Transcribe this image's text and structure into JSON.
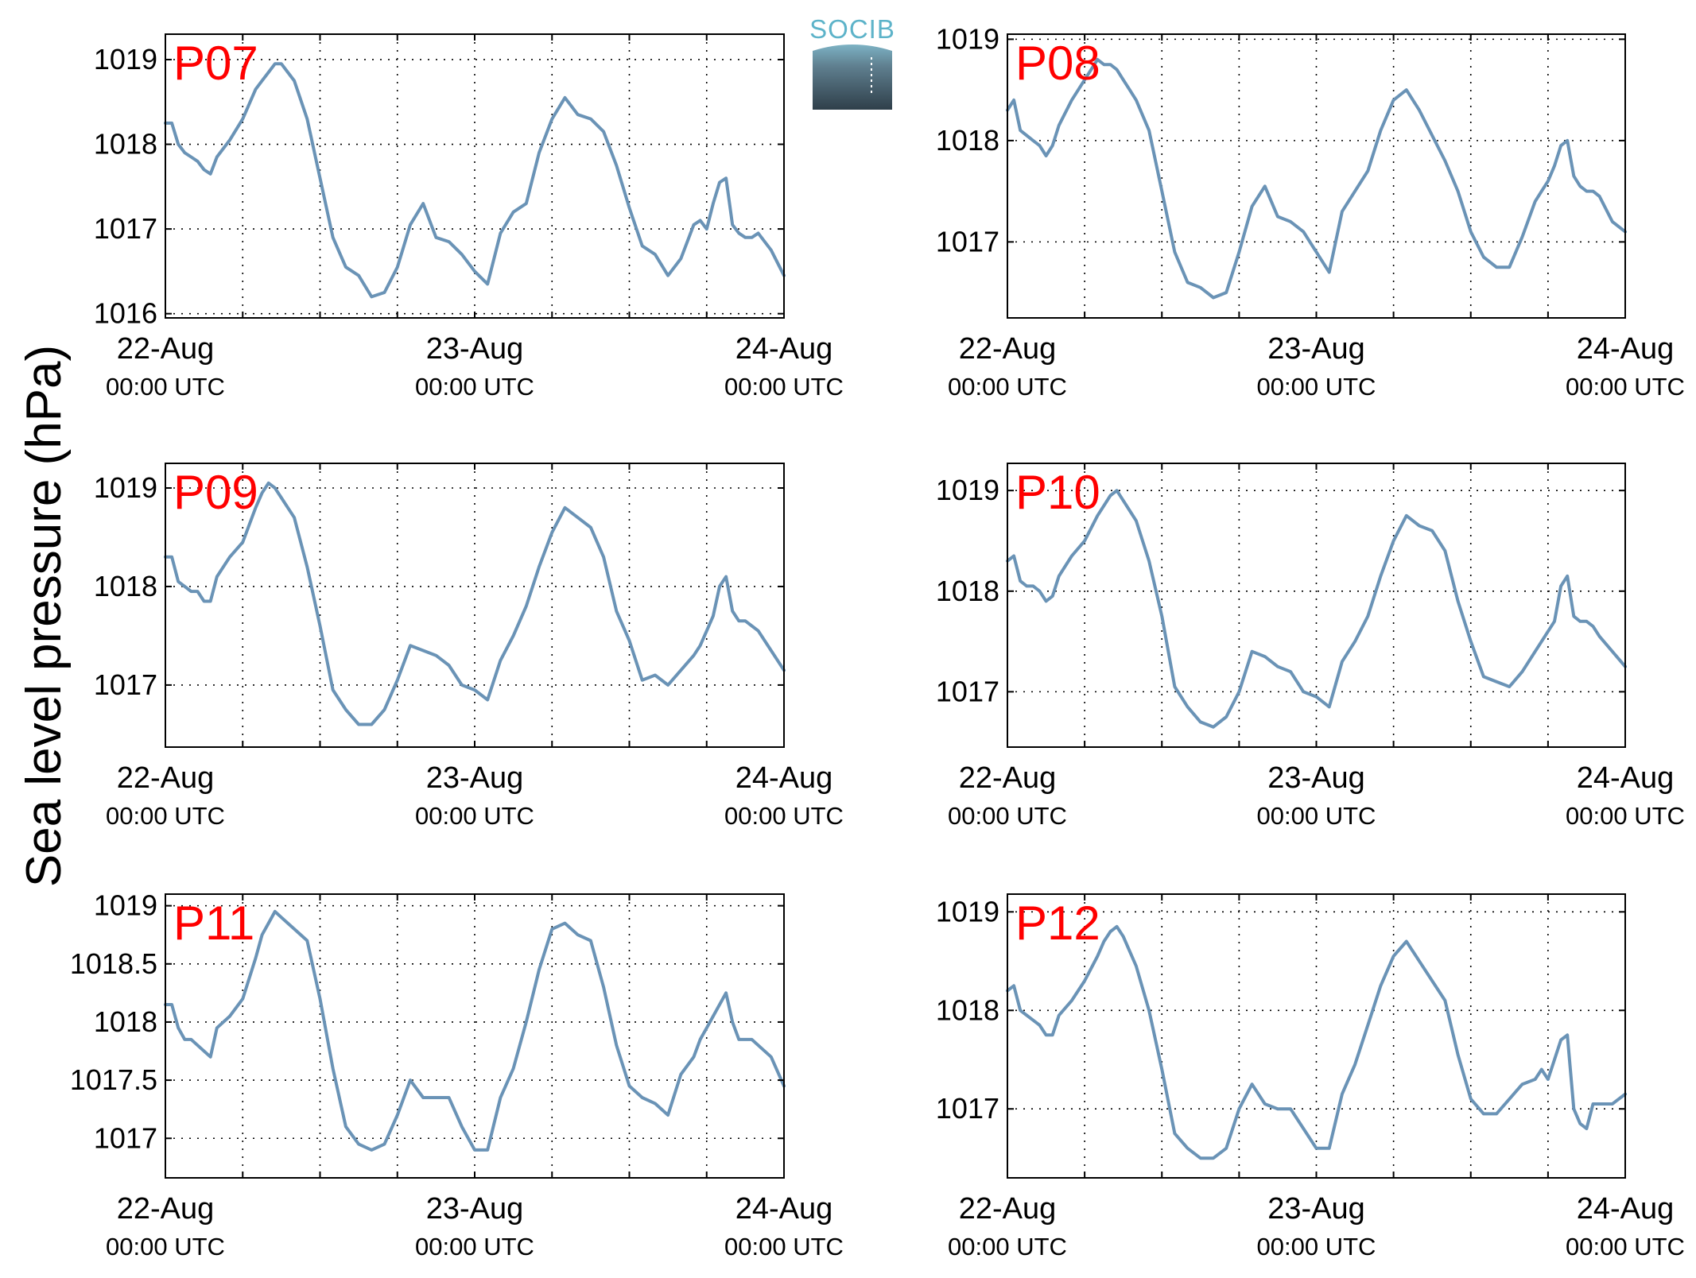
{
  "figure": {
    "ylabel": "Sea level pressure (hPa)",
    "logo_text": "SOCIB"
  },
  "colors": {
    "line": "#6a93b6",
    "title": "#ff0000",
    "axis": "#000000",
    "grid": "#000000"
  },
  "chart_data": [
    {
      "type": "line",
      "title": "P07",
      "x_ticks": [
        {
          "date": "22-Aug",
          "time": "00:00 UTC"
        },
        {
          "date": "23-Aug",
          "time": "00:00 UTC"
        },
        {
          "date": "24-Aug",
          "time": "00:00 UTC"
        }
      ],
      "xlim": [
        0,
        48
      ],
      "ylim": [
        1015.95,
        1019.3
      ],
      "yticks": [
        1016,
        1017,
        1018,
        1019
      ],
      "ytick_labels": [
        "1016",
        "1017",
        "1018",
        "1019"
      ],
      "grid": true,
      "series": [
        {
          "x": [
            0,
            0.5,
            1,
            1.5,
            2,
            2.5,
            3,
            3.5,
            4,
            5,
            6,
            7,
            7.5,
            8,
            8.5,
            9,
            9.5,
            10,
            11,
            12,
            13,
            14,
            15,
            16,
            17,
            18,
            19,
            20,
            21,
            22,
            23,
            24,
            25,
            26,
            27,
            28,
            29,
            30,
            31,
            32,
            33,
            34,
            35,
            36,
            37,
            38,
            39,
            40,
            41,
            41.5,
            42,
            42.5,
            43,
            43.5,
            44,
            44.5,
            45,
            45.5,
            46,
            47,
            48
          ],
          "y": [
            1018.25,
            1018.25,
            1018.0,
            1017.9,
            1017.85,
            1017.8,
            1017.7,
            1017.65,
            1017.85,
            1018.05,
            1018.3,
            1018.65,
            1018.75,
            1018.85,
            1018.95,
            1018.95,
            1018.85,
            1018.75,
            1018.3,
            1017.6,
            1016.9,
            1016.55,
            1016.45,
            1016.2,
            1016.25,
            1016.55,
            1017.05,
            1017.3,
            1016.9,
            1016.85,
            1016.7,
            1016.5,
            1016.35,
            1016.95,
            1017.2,
            1017.3,
            1017.9,
            1018.3,
            1018.55,
            1018.35,
            1018.3,
            1018.15,
            1017.75,
            1017.25,
            1016.8,
            1016.7,
            1016.45,
            1016.65,
            1017.05,
            1017.1,
            1017.0,
            1017.3,
            1017.55,
            1017.6,
            1017.05,
            1016.95,
            1016.9,
            1016.9,
            1016.95,
            1016.75,
            1016.45
          ]
        }
      ]
    },
    {
      "type": "line",
      "title": "P08",
      "x_ticks": [
        {
          "date": "22-Aug",
          "time": "00:00 UTC"
        },
        {
          "date": "23-Aug",
          "time": "00:00 UTC"
        },
        {
          "date": "24-Aug",
          "time": "00:00 UTC"
        }
      ],
      "xlim": [
        0,
        48
      ],
      "ylim": [
        1016.25,
        1019.05
      ],
      "yticks": [
        1017,
        1018,
        1019
      ],
      "ytick_labels": [
        "1017",
        "1018",
        "1019"
      ],
      "grid": true,
      "series": [
        {
          "x": [
            0,
            0.5,
            1,
            1.5,
            2,
            2.5,
            3,
            3.5,
            4,
            5,
            6,
            7,
            7.5,
            8,
            8.5,
            9,
            9.5,
            10,
            11,
            12,
            13,
            14,
            15,
            16,
            17,
            18,
            19,
            20,
            21,
            22,
            23,
            24,
            25,
            26,
            27,
            28,
            29,
            30,
            31,
            32,
            33,
            34,
            35,
            36,
            37,
            38,
            39,
            40,
            41,
            41.5,
            42,
            42.5,
            43,
            43.5,
            44,
            44.5,
            45,
            45.5,
            46,
            47,
            48
          ],
          "y": [
            1018.3,
            1018.4,
            1018.1,
            1018.05,
            1018.0,
            1017.95,
            1017.85,
            1017.95,
            1018.15,
            1018.4,
            1018.6,
            1018.8,
            1018.75,
            1018.75,
            1018.7,
            1018.6,
            1018.5,
            1018.4,
            1018.1,
            1017.5,
            1016.9,
            1016.6,
            1016.55,
            1016.45,
            1016.5,
            1016.9,
            1017.35,
            1017.55,
            1017.25,
            1017.2,
            1017.1,
            1016.9,
            1016.7,
            1017.3,
            1017.5,
            1017.7,
            1018.1,
            1018.4,
            1018.5,
            1018.3,
            1018.05,
            1017.8,
            1017.5,
            1017.1,
            1016.85,
            1016.75,
            1016.75,
            1017.05,
            1017.4,
            1017.5,
            1017.6,
            1017.75,
            1017.95,
            1018.0,
            1017.65,
            1017.55,
            1017.5,
            1017.5,
            1017.45,
            1017.2,
            1017.1
          ]
        }
      ]
    },
    {
      "type": "line",
      "title": "P09",
      "x_ticks": [
        {
          "date": "22-Aug",
          "time": "00:00 UTC"
        },
        {
          "date": "23-Aug",
          "time": "00:00 UTC"
        },
        {
          "date": "24-Aug",
          "time": "00:00 UTC"
        }
      ],
      "xlim": [
        0,
        48
      ],
      "ylim": [
        1016.37,
        1019.25
      ],
      "yticks": [
        1017,
        1018,
        1019
      ],
      "ytick_labels": [
        "1017",
        "1018",
        "1019"
      ],
      "grid": true,
      "series": [
        {
          "x": [
            0,
            0.5,
            1,
            1.5,
            2,
            2.5,
            3,
            3.5,
            4,
            5,
            6,
            7,
            7.5,
            8,
            8.5,
            9,
            9.5,
            10,
            11,
            12,
            13,
            14,
            15,
            16,
            17,
            18,
            19,
            20,
            21,
            22,
            23,
            24,
            25,
            26,
            27,
            28,
            29,
            30,
            31,
            32,
            33,
            34,
            35,
            36,
            37,
            38,
            39,
            40,
            41,
            41.5,
            42,
            42.5,
            43,
            43.5,
            44,
            44.5,
            45,
            45.5,
            46,
            47,
            48
          ],
          "y": [
            1018.3,
            1018.3,
            1018.05,
            1018.0,
            1017.95,
            1017.95,
            1017.85,
            1017.85,
            1018.1,
            1018.3,
            1018.45,
            1018.8,
            1018.95,
            1019.05,
            1019.0,
            1018.9,
            1018.8,
            1018.7,
            1018.2,
            1017.6,
            1016.95,
            1016.75,
            1016.6,
            1016.6,
            1016.75,
            1017.05,
            1017.4,
            1017.35,
            1017.3,
            1017.2,
            1017.0,
            1016.95,
            1016.85,
            1017.25,
            1017.5,
            1017.8,
            1018.2,
            1018.55,
            1018.8,
            1018.7,
            1018.6,
            1018.3,
            1017.75,
            1017.45,
            1017.05,
            1017.1,
            1017.0,
            1017.15,
            1017.3,
            1017.4,
            1017.55,
            1017.7,
            1018.0,
            1018.1,
            1017.75,
            1017.65,
            1017.65,
            1017.6,
            1017.55,
            1017.35,
            1017.15
          ]
        }
      ]
    },
    {
      "type": "line",
      "title": "P10",
      "x_ticks": [
        {
          "date": "22-Aug",
          "time": "00:00 UTC"
        },
        {
          "date": "23-Aug",
          "time": "00:00 UTC"
        },
        {
          "date": "24-Aug",
          "time": "00:00 UTC"
        }
      ],
      "xlim": [
        0,
        48
      ],
      "ylim": [
        1016.45,
        1019.27
      ],
      "yticks": [
        1017,
        1018,
        1019
      ],
      "ytick_labels": [
        "1017",
        "1018",
        "1019"
      ],
      "grid": true,
      "series": [
        {
          "x": [
            0,
            0.5,
            1,
            1.5,
            2,
            2.5,
            3,
            3.5,
            4,
            5,
            6,
            7,
            7.5,
            8,
            8.5,
            9,
            9.5,
            10,
            11,
            12,
            13,
            14,
            15,
            16,
            17,
            18,
            19,
            20,
            21,
            22,
            23,
            24,
            25,
            26,
            27,
            28,
            29,
            30,
            31,
            32,
            33,
            34,
            35,
            36,
            37,
            38,
            39,
            40,
            41,
            41.5,
            42,
            42.5,
            43,
            43.5,
            44,
            44.5,
            45,
            45.5,
            46,
            47,
            48
          ],
          "y": [
            1018.3,
            1018.35,
            1018.1,
            1018.05,
            1018.05,
            1018.0,
            1017.9,
            1017.95,
            1018.15,
            1018.35,
            1018.5,
            1018.75,
            1018.85,
            1018.95,
            1019.0,
            1018.9,
            1018.8,
            1018.7,
            1018.3,
            1017.75,
            1017.05,
            1016.85,
            1016.7,
            1016.65,
            1016.75,
            1017.0,
            1017.4,
            1017.35,
            1017.25,
            1017.2,
            1017.0,
            1016.95,
            1016.85,
            1017.3,
            1017.5,
            1017.75,
            1018.15,
            1018.5,
            1018.75,
            1018.65,
            1018.6,
            1018.4,
            1017.9,
            1017.5,
            1017.15,
            1017.1,
            1017.05,
            1017.2,
            1017.4,
            1017.5,
            1017.6,
            1017.7,
            1018.05,
            1018.15,
            1017.75,
            1017.7,
            1017.7,
            1017.65,
            1017.55,
            1017.4,
            1017.25
          ]
        }
      ]
    },
    {
      "type": "line",
      "title": "P11",
      "x_ticks": [
        {
          "date": "22-Aug",
          "time": "00:00 UTC"
        },
        {
          "date": "23-Aug",
          "time": "00:00 UTC"
        },
        {
          "date": "24-Aug",
          "time": "00:00 UTC"
        }
      ],
      "xlim": [
        0,
        48
      ],
      "ylim": [
        1016.66,
        1019.1
      ],
      "yticks": [
        1017,
        1017.5,
        1018,
        1018.5,
        1019
      ],
      "ytick_labels": [
        "1017",
        "1017.5",
        "1018",
        "1018.5",
        "1019"
      ],
      "grid": true,
      "series": [
        {
          "x": [
            0,
            0.5,
            1,
            1.5,
            2,
            2.5,
            3,
            3.5,
            4,
            5,
            6,
            7,
            7.5,
            8,
            8.5,
            9,
            9.5,
            10,
            11,
            12,
            13,
            14,
            15,
            16,
            17,
            18,
            19,
            20,
            21,
            22,
            23,
            24,
            25,
            26,
            27,
            28,
            29,
            30,
            31,
            32,
            33,
            34,
            35,
            36,
            37,
            38,
            39,
            40,
            41,
            41.5,
            42,
            42.5,
            43,
            43.5,
            44,
            44.5,
            45,
            45.5,
            46,
            47,
            48
          ],
          "y": [
            1018.15,
            1018.15,
            1017.95,
            1017.85,
            1017.85,
            1017.8,
            1017.75,
            1017.7,
            1017.95,
            1018.05,
            1018.2,
            1018.55,
            1018.75,
            1018.85,
            1018.95,
            1018.9,
            1018.85,
            1018.8,
            1018.7,
            1018.2,
            1017.6,
            1017.1,
            1016.95,
            1016.9,
            1016.95,
            1017.2,
            1017.5,
            1017.35,
            1017.35,
            1017.35,
            1017.1,
            1016.9,
            1016.9,
            1017.35,
            1017.6,
            1018.0,
            1018.45,
            1018.8,
            1018.85,
            1018.75,
            1018.7,
            1018.3,
            1017.8,
            1017.45,
            1017.35,
            1017.3,
            1017.2,
            1017.55,
            1017.7,
            1017.85,
            1017.95,
            1018.05,
            1018.15,
            1018.25,
            1018.0,
            1017.85,
            1017.85,
            1017.85,
            1017.8,
            1017.7,
            1017.45
          ]
        }
      ]
    },
    {
      "type": "line",
      "title": "P12",
      "x_ticks": [
        {
          "date": "22-Aug",
          "time": "00:00 UTC"
        },
        {
          "date": "23-Aug",
          "time": "00:00 UTC"
        },
        {
          "date": "24-Aug",
          "time": "00:00 UTC"
        }
      ],
      "xlim": [
        0,
        48
      ],
      "ylim": [
        1016.3,
        1019.18
      ],
      "yticks": [
        1017,
        1018,
        1019
      ],
      "ytick_labels": [
        "1017",
        "1018",
        "1019"
      ],
      "grid": true,
      "series": [
        {
          "x": [
            0,
            0.5,
            1,
            1.5,
            2,
            2.5,
            3,
            3.5,
            4,
            5,
            6,
            7,
            7.5,
            8,
            8.5,
            9,
            9.5,
            10,
            11,
            12,
            13,
            14,
            15,
            16,
            17,
            18,
            19,
            20,
            21,
            22,
            23,
            24,
            25,
            26,
            27,
            28,
            29,
            30,
            31,
            32,
            33,
            34,
            35,
            36,
            37,
            38,
            39,
            40,
            41,
            41.5,
            42,
            42.5,
            43,
            43.5,
            44,
            44.5,
            45,
            45.5,
            46,
            47,
            48
          ],
          "y": [
            1018.2,
            1018.25,
            1018.0,
            1017.95,
            1017.9,
            1017.85,
            1017.75,
            1017.75,
            1017.95,
            1018.1,
            1018.3,
            1018.55,
            1018.7,
            1018.8,
            1018.85,
            1018.75,
            1018.6,
            1018.45,
            1018.0,
            1017.4,
            1016.75,
            1016.6,
            1016.5,
            1016.5,
            1016.6,
            1017.0,
            1017.25,
            1017.05,
            1017.0,
            1017.0,
            1016.8,
            1016.6,
            1016.6,
            1017.15,
            1017.45,
            1017.85,
            1018.25,
            1018.55,
            1018.7,
            1018.5,
            1018.3,
            1018.1,
            1017.55,
            1017.1,
            1016.95,
            1016.95,
            1017.1,
            1017.25,
            1017.3,
            1017.4,
            1017.3,
            1017.5,
            1017.7,
            1017.75,
            1017.0,
            1016.85,
            1016.8,
            1017.05,
            1017.05,
            1017.05,
            1017.15
          ]
        }
      ]
    }
  ]
}
